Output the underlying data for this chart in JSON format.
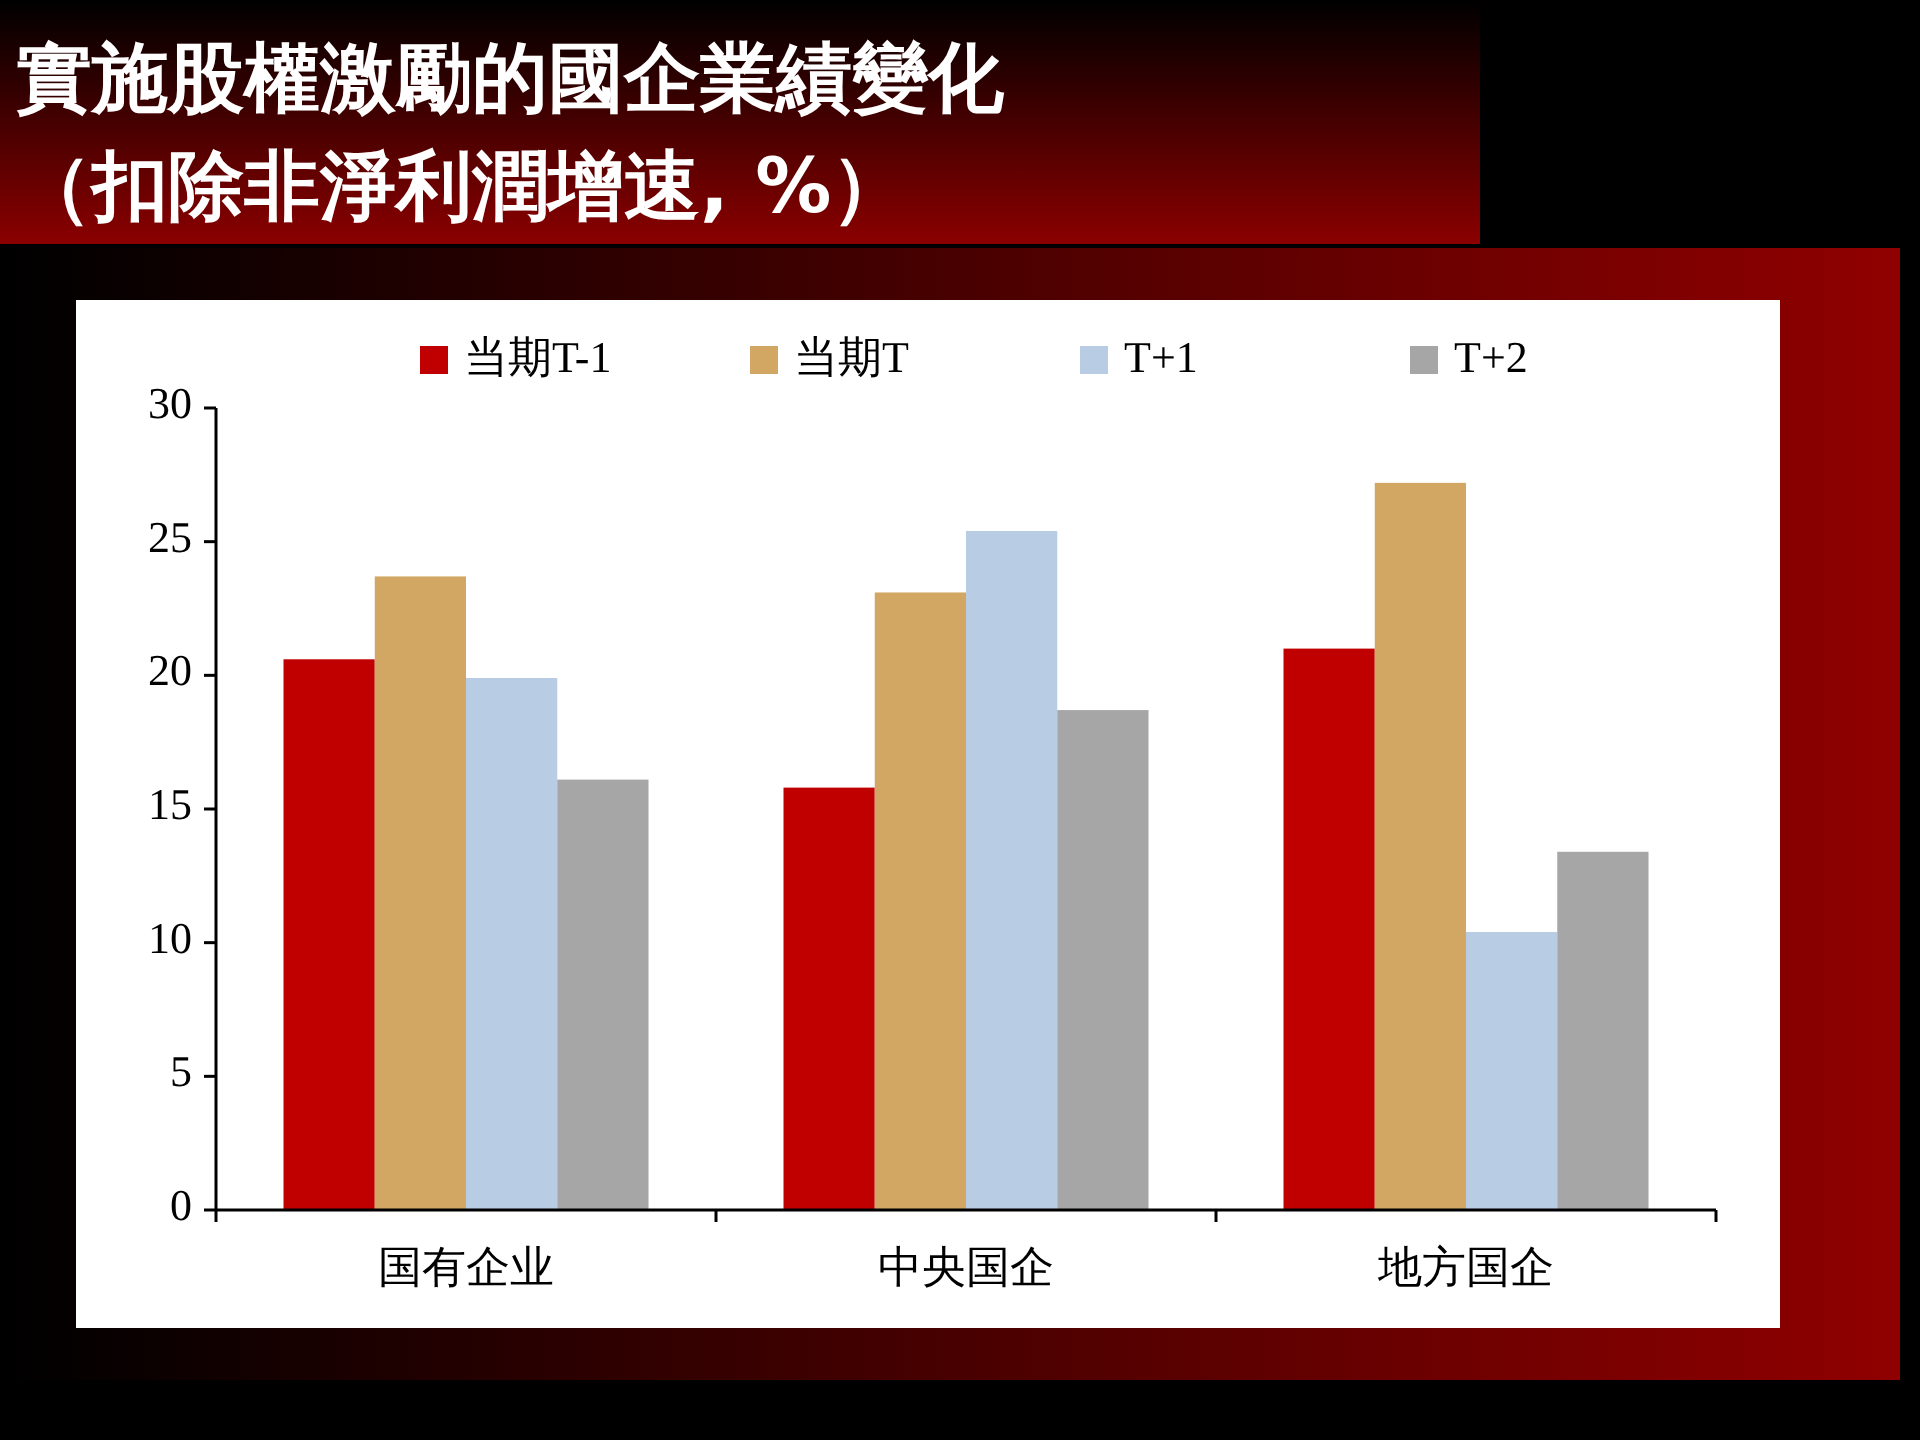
{
  "chart_data": {
    "type": "bar",
    "title": "實施股權激勵的國企業績變化",
    "subtitle": "（扣除非淨利潤增速, %）",
    "categories": [
      "国有企业",
      "中央国企",
      "地方国企"
    ],
    "series": [
      {
        "name": "当期T-1",
        "color": "#c00000",
        "values": [
          20.6,
          15.8,
          21.0
        ]
      },
      {
        "name": "当期T",
        "color": "#d1a763",
        "values": [
          23.7,
          23.1,
          27.2
        ]
      },
      {
        "name": "T+1",
        "color": "#b8cce4",
        "values": [
          19.9,
          25.4,
          10.4
        ]
      },
      {
        "name": "T+2",
        "color": "#a6a6a6",
        "values": [
          16.1,
          18.7,
          13.4
        ]
      }
    ],
    "ylim": [
      0,
      30
    ],
    "yticks": [
      0,
      5,
      10,
      15,
      20,
      25,
      30
    ],
    "legend": "top"
  }
}
